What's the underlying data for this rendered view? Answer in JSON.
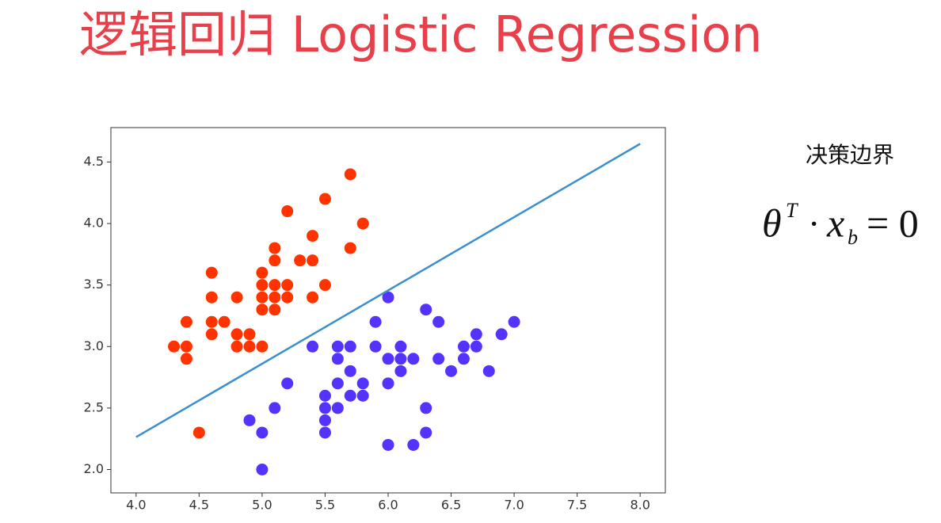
{
  "slide_title": "逻辑回归 Logistic Regression",
  "annotation": {
    "label": "决策边界",
    "formula": {
      "base": "θ",
      "sup": "T",
      "dot": "·",
      "var": "x",
      "sub": "b",
      "rhs": "= 0"
    }
  },
  "chart_data": {
    "type": "scatter",
    "xlim": [
      3.8,
      8.2
    ],
    "ylim": [
      1.81,
      4.78
    ],
    "xticks": [
      {
        "value": 4,
        "label": "4.0"
      },
      4.5,
      {
        "value": 5,
        "label": "5.0"
      },
      5.5,
      {
        "value": 6,
        "label": "6.0"
      },
      6.5,
      {
        "value": 7,
        "label": "7.0"
      },
      7.5,
      {
        "value": 8,
        "label": "8.0"
      }
    ],
    "yticks": [
      {
        "value": 2,
        "label": "2.0"
      },
      2.5,
      {
        "value": 3,
        "label": "3.0"
      },
      3.5,
      {
        "value": 4,
        "label": "4.0"
      },
      4.5
    ],
    "series": [
      {
        "color": "#ff3300",
        "x": [
          5.7,
          5.5,
          5.2,
          5.8,
          5.4,
          5.1,
          5.7,
          5.1,
          5.3,
          5.4,
          4.6,
          5.0,
          5.0,
          5.1,
          5.2,
          5.5,
          4.6,
          4.8,
          5.0,
          5.1,
          5.2,
          5.4,
          5.0,
          5.1,
          4.4,
          4.6,
          4.7,
          4.6,
          4.8,
          4.9,
          4.3,
          4.4,
          4.8,
          4.9,
          5.0,
          4.4,
          4.5
        ],
        "y": [
          4.4,
          4.2,
          4.1,
          4.0,
          3.9,
          3.8,
          3.8,
          3.7,
          3.7,
          3.7,
          3.6,
          3.6,
          3.5,
          3.5,
          3.5,
          3.5,
          3.4,
          3.4,
          3.4,
          3.4,
          3.4,
          3.4,
          3.3,
          3.3,
          3.2,
          3.2,
          3.2,
          3.1,
          3.1,
          3.1,
          3.0,
          3.0,
          3.0,
          3.0,
          3.0,
          2.9,
          2.3
        ]
      },
      {
        "color": "#5533ff",
        "x": [
          6.0,
          6.3,
          5.9,
          6.4,
          7.0,
          6.7,
          6.9,
          5.4,
          5.6,
          5.7,
          5.9,
          6.1,
          6.6,
          6.7,
          5.6,
          6.0,
          6.1,
          6.2,
          6.4,
          6.6,
          5.7,
          6.1,
          6.5,
          6.8,
          5.2,
          5.6,
          5.8,
          6.0,
          5.8,
          5.5,
          5.7,
          5.1,
          5.5,
          5.6,
          6.3,
          4.9,
          5.5,
          5.0,
          5.5,
          6.3,
          6.0,
          6.2,
          5.0
        ],
        "y": [
          3.4,
          3.3,
          3.2,
          3.2,
          3.2,
          3.1,
          3.1,
          3.0,
          3.0,
          3.0,
          3.0,
          3.0,
          3.0,
          3.0,
          2.9,
          2.9,
          2.9,
          2.9,
          2.9,
          2.9,
          2.8,
          2.8,
          2.8,
          2.8,
          2.7,
          2.7,
          2.7,
          2.7,
          2.6,
          2.6,
          2.6,
          2.5,
          2.5,
          2.5,
          2.5,
          2.4,
          2.4,
          2.3,
          2.3,
          2.3,
          2.2,
          2.2,
          2.0
        ]
      }
    ],
    "line": {
      "color": "#3a8fce",
      "x": [
        4.0,
        8.0
      ],
      "y": [
        2.264,
        4.648
      ]
    }
  }
}
